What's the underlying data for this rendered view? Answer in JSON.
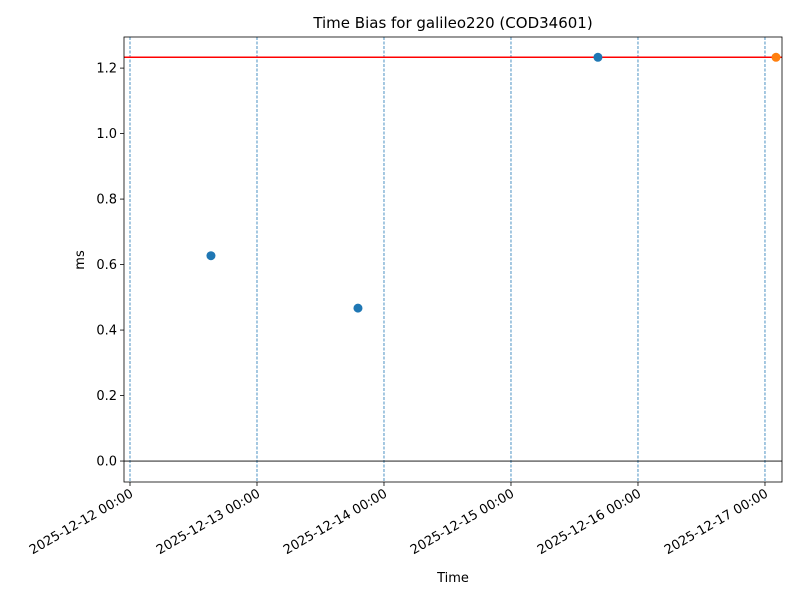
{
  "chart_data": {
    "type": "scatter",
    "title": "Time Bias for galileo220 (COD34601)",
    "x_label": "Time",
    "y_label": "ms",
    "series": [
      {
        "color": "#1f77b4",
        "x": [
          "2025-12-12 15:18",
          "2025-12-13 19:05",
          "2025-12-15 16:26"
        ],
        "values": [
          0.627,
          0.467,
          1.233
        ]
      },
      {
        "color": "#ff7f0e",
        "x": [
          "2025-12-17 02:05"
        ],
        "values": [
          1.233
        ]
      }
    ],
    "hlines": [
      {
        "value": 1.233,
        "color": "#ff0000"
      },
      {
        "value": 0,
        "color": "#000000"
      }
    ],
    "x_grid": true,
    "x_grid_color": "#1f77b4",
    "xlim": [
      "2025-12-11 22:52",
      "2025-12-17 03:13"
    ],
    "xticks": [
      "2025-12-12 00:00",
      "2025-12-13 00:00",
      "2025-12-14 00:00",
      "2025-12-15 00:00",
      "2025-12-16 00:00",
      "2025-12-17 00:00"
    ],
    "ylim": [
      -0.064,
      1.295
    ],
    "yticks": [
      {
        "value": 0,
        "label": "0.0"
      },
      0.2,
      0.4,
      0.6,
      0.8,
      {
        "value": 1,
        "label": "1.0"
      },
      1.2
    ]
  }
}
